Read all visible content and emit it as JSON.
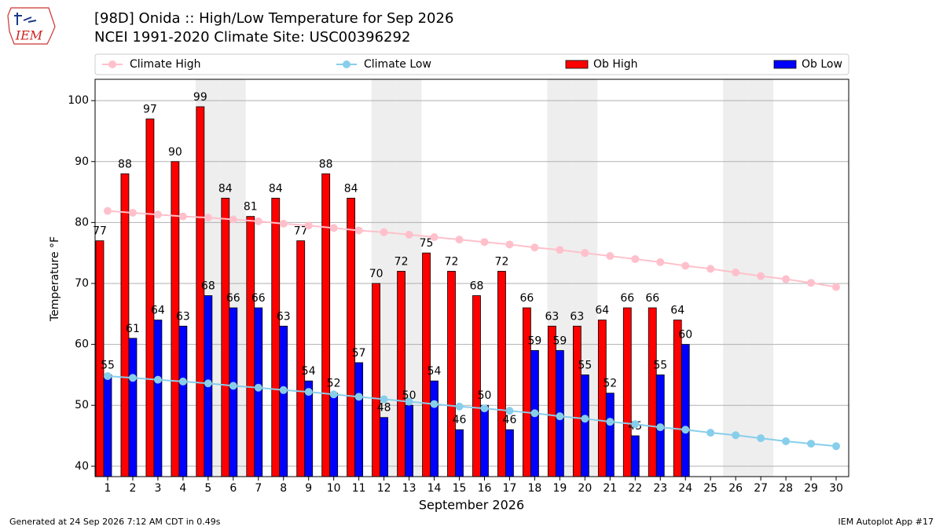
{
  "logo": "IEM",
  "chart_data": {
    "type": "bar",
    "title": "[98D] Onida :: High/Low Temperature for Sep 2026",
    "subtitle": "NCEI 1991-2020 Climate Site: USC00396292",
    "x_label": "September 2026",
    "y_label": "Temperature °F",
    "categories": [
      "1",
      "2",
      "3",
      "4",
      "5",
      "6",
      "7",
      "8",
      "9",
      "10",
      "11",
      "12",
      "13",
      "14",
      "15",
      "16",
      "17",
      "18",
      "19",
      "20",
      "21",
      "22",
      "23",
      "24",
      "25",
      "26",
      "27",
      "28",
      "29",
      "30"
    ],
    "shaded": [
      "5",
      "6",
      "12",
      "13",
      "19",
      "20",
      "26",
      "27"
    ],
    "series": [
      {
        "name": "Climate High",
        "type": "line",
        "color": "#ffc0cb",
        "values": [
          81.9,
          81.6,
          81.3,
          81.0,
          80.8,
          80.5,
          80.2,
          79.8,
          79.5,
          79.1,
          78.7,
          78.4,
          78.0,
          77.6,
          77.2,
          76.8,
          76.4,
          75.9,
          75.5,
          75.0,
          74.5,
          74.0,
          73.5,
          72.9,
          72.4,
          71.8,
          71.2,
          70.7,
          70.1,
          69.4
        ]
      },
      {
        "name": "Climate Low",
        "type": "line",
        "color": "#87ceeb",
        "values": [
          54.8,
          54.5,
          54.2,
          53.9,
          53.6,
          53.2,
          52.9,
          52.5,
          52.2,
          51.8,
          51.4,
          51.0,
          50.6,
          50.2,
          49.8,
          49.5,
          49.1,
          48.7,
          48.2,
          47.8,
          47.3,
          46.9,
          46.4,
          46.0,
          45.5,
          45.1,
          44.6,
          44.1,
          43.7,
          43.3
        ]
      },
      {
        "name": "Ob High",
        "type": "bar",
        "color": "#ff0000",
        "values": [
          77,
          88,
          97,
          90,
          99,
          84,
          81,
          84,
          77,
          88,
          84,
          70,
          72,
          75,
          72,
          68,
          72,
          66,
          63,
          63,
          64,
          66,
          66,
          64,
          null,
          null,
          null,
          null,
          null,
          null
        ]
      },
      {
        "name": "Ob Low",
        "type": "bar",
        "color": "#0000ff",
        "values": [
          55,
          61,
          64,
          63,
          68,
          66,
          66,
          63,
          54,
          52,
          57,
          48,
          50,
          54,
          46,
          50,
          46,
          59,
          59,
          55,
          52,
          45,
          55,
          60,
          null,
          null,
          null,
          null,
          null,
          null
        ]
      }
    ],
    "ylim": [
      38.3,
      103.5
    ],
    "yticks": [
      40,
      50,
      60,
      70,
      80,
      90,
      100
    ],
    "grid": true,
    "legend": "top",
    "footer_left": "Generated at 24 Sep 2026 7:12 AM CDT in 0.49s",
    "footer_right": "IEM Autoplot App #17"
  }
}
